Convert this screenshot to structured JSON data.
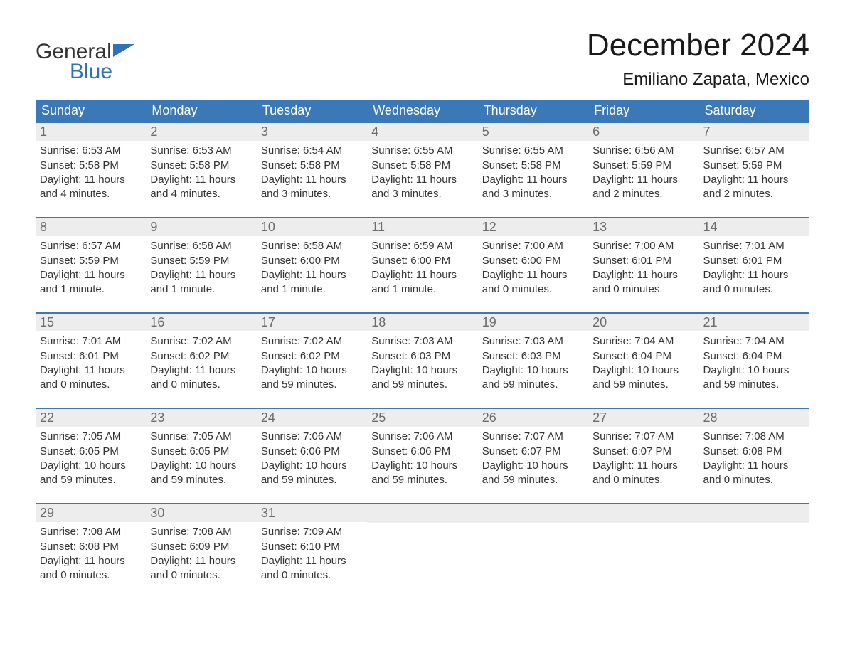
{
  "logo": {
    "word1": "General",
    "word2": "Blue",
    "brand_color": "#2f72b8"
  },
  "title": "December 2024",
  "location": "Emiliano Zapata, Mexico",
  "colors": {
    "header_bg": "#3b78b8",
    "header_text": "#ffffff",
    "daynum_bg": "#ededed",
    "daynum_text": "#6b6b6b",
    "body_text": "#333333",
    "week_border": "#3b78b8",
    "page_bg": "#ffffff"
  },
  "day_names": [
    "Sunday",
    "Monday",
    "Tuesday",
    "Wednesday",
    "Thursday",
    "Friday",
    "Saturday"
  ],
  "weeks": [
    [
      {
        "n": "1",
        "sunrise": "Sunrise: 6:53 AM",
        "sunset": "Sunset: 5:58 PM",
        "dl1": "Daylight: 11 hours",
        "dl2": "and 4 minutes."
      },
      {
        "n": "2",
        "sunrise": "Sunrise: 6:53 AM",
        "sunset": "Sunset: 5:58 PM",
        "dl1": "Daylight: 11 hours",
        "dl2": "and 4 minutes."
      },
      {
        "n": "3",
        "sunrise": "Sunrise: 6:54 AM",
        "sunset": "Sunset: 5:58 PM",
        "dl1": "Daylight: 11 hours",
        "dl2": "and 3 minutes."
      },
      {
        "n": "4",
        "sunrise": "Sunrise: 6:55 AM",
        "sunset": "Sunset: 5:58 PM",
        "dl1": "Daylight: 11 hours",
        "dl2": "and 3 minutes."
      },
      {
        "n": "5",
        "sunrise": "Sunrise: 6:55 AM",
        "sunset": "Sunset: 5:58 PM",
        "dl1": "Daylight: 11 hours",
        "dl2": "and 3 minutes."
      },
      {
        "n": "6",
        "sunrise": "Sunrise: 6:56 AM",
        "sunset": "Sunset: 5:59 PM",
        "dl1": "Daylight: 11 hours",
        "dl2": "and 2 minutes."
      },
      {
        "n": "7",
        "sunrise": "Sunrise: 6:57 AM",
        "sunset": "Sunset: 5:59 PM",
        "dl1": "Daylight: 11 hours",
        "dl2": "and 2 minutes."
      }
    ],
    [
      {
        "n": "8",
        "sunrise": "Sunrise: 6:57 AM",
        "sunset": "Sunset: 5:59 PM",
        "dl1": "Daylight: 11 hours",
        "dl2": "and 1 minute."
      },
      {
        "n": "9",
        "sunrise": "Sunrise: 6:58 AM",
        "sunset": "Sunset: 5:59 PM",
        "dl1": "Daylight: 11 hours",
        "dl2": "and 1 minute."
      },
      {
        "n": "10",
        "sunrise": "Sunrise: 6:58 AM",
        "sunset": "Sunset: 6:00 PM",
        "dl1": "Daylight: 11 hours",
        "dl2": "and 1 minute."
      },
      {
        "n": "11",
        "sunrise": "Sunrise: 6:59 AM",
        "sunset": "Sunset: 6:00 PM",
        "dl1": "Daylight: 11 hours",
        "dl2": "and 1 minute."
      },
      {
        "n": "12",
        "sunrise": "Sunrise: 7:00 AM",
        "sunset": "Sunset: 6:00 PM",
        "dl1": "Daylight: 11 hours",
        "dl2": "and 0 minutes."
      },
      {
        "n": "13",
        "sunrise": "Sunrise: 7:00 AM",
        "sunset": "Sunset: 6:01 PM",
        "dl1": "Daylight: 11 hours",
        "dl2": "and 0 minutes."
      },
      {
        "n": "14",
        "sunrise": "Sunrise: 7:01 AM",
        "sunset": "Sunset: 6:01 PM",
        "dl1": "Daylight: 11 hours",
        "dl2": "and 0 minutes."
      }
    ],
    [
      {
        "n": "15",
        "sunrise": "Sunrise: 7:01 AM",
        "sunset": "Sunset: 6:01 PM",
        "dl1": "Daylight: 11 hours",
        "dl2": "and 0 minutes."
      },
      {
        "n": "16",
        "sunrise": "Sunrise: 7:02 AM",
        "sunset": "Sunset: 6:02 PM",
        "dl1": "Daylight: 11 hours",
        "dl2": "and 0 minutes."
      },
      {
        "n": "17",
        "sunrise": "Sunrise: 7:02 AM",
        "sunset": "Sunset: 6:02 PM",
        "dl1": "Daylight: 10 hours",
        "dl2": "and 59 minutes."
      },
      {
        "n": "18",
        "sunrise": "Sunrise: 7:03 AM",
        "sunset": "Sunset: 6:03 PM",
        "dl1": "Daylight: 10 hours",
        "dl2": "and 59 minutes."
      },
      {
        "n": "19",
        "sunrise": "Sunrise: 7:03 AM",
        "sunset": "Sunset: 6:03 PM",
        "dl1": "Daylight: 10 hours",
        "dl2": "and 59 minutes."
      },
      {
        "n": "20",
        "sunrise": "Sunrise: 7:04 AM",
        "sunset": "Sunset: 6:04 PM",
        "dl1": "Daylight: 10 hours",
        "dl2": "and 59 minutes."
      },
      {
        "n": "21",
        "sunrise": "Sunrise: 7:04 AM",
        "sunset": "Sunset: 6:04 PM",
        "dl1": "Daylight: 10 hours",
        "dl2": "and 59 minutes."
      }
    ],
    [
      {
        "n": "22",
        "sunrise": "Sunrise: 7:05 AM",
        "sunset": "Sunset: 6:05 PM",
        "dl1": "Daylight: 10 hours",
        "dl2": "and 59 minutes."
      },
      {
        "n": "23",
        "sunrise": "Sunrise: 7:05 AM",
        "sunset": "Sunset: 6:05 PM",
        "dl1": "Daylight: 10 hours",
        "dl2": "and 59 minutes."
      },
      {
        "n": "24",
        "sunrise": "Sunrise: 7:06 AM",
        "sunset": "Sunset: 6:06 PM",
        "dl1": "Daylight: 10 hours",
        "dl2": "and 59 minutes."
      },
      {
        "n": "25",
        "sunrise": "Sunrise: 7:06 AM",
        "sunset": "Sunset: 6:06 PM",
        "dl1": "Daylight: 10 hours",
        "dl2": "and 59 minutes."
      },
      {
        "n": "26",
        "sunrise": "Sunrise: 7:07 AM",
        "sunset": "Sunset: 6:07 PM",
        "dl1": "Daylight: 10 hours",
        "dl2": "and 59 minutes."
      },
      {
        "n": "27",
        "sunrise": "Sunrise: 7:07 AM",
        "sunset": "Sunset: 6:07 PM",
        "dl1": "Daylight: 11 hours",
        "dl2": "and 0 minutes."
      },
      {
        "n": "28",
        "sunrise": "Sunrise: 7:08 AM",
        "sunset": "Sunset: 6:08 PM",
        "dl1": "Daylight: 11 hours",
        "dl2": "and 0 minutes."
      }
    ],
    [
      {
        "n": "29",
        "sunrise": "Sunrise: 7:08 AM",
        "sunset": "Sunset: 6:08 PM",
        "dl1": "Daylight: 11 hours",
        "dl2": "and 0 minutes."
      },
      {
        "n": "30",
        "sunrise": "Sunrise: 7:08 AM",
        "sunset": "Sunset: 6:09 PM",
        "dl1": "Daylight: 11 hours",
        "dl2": "and 0 minutes."
      },
      {
        "n": "31",
        "sunrise": "Sunrise: 7:09 AM",
        "sunset": "Sunset: 6:10 PM",
        "dl1": "Daylight: 11 hours",
        "dl2": "and 0 minutes."
      },
      null,
      null,
      null,
      null
    ]
  ]
}
